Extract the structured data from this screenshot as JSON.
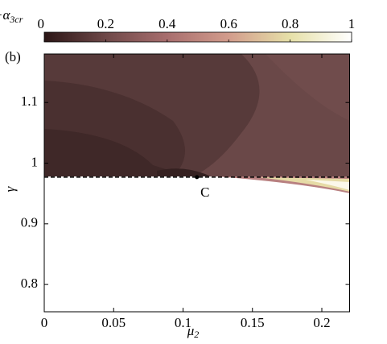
{
  "chart_data": {
    "type": "contour",
    "panel_label": "(b)",
    "colorbar_label": {
      "symbol": "−α",
      "subscript": "3cr"
    },
    "clim": [
      0,
      1
    ],
    "cticks": [
      0,
      0.2,
      0.4,
      0.6,
      0.8,
      1
    ],
    "colormap": [
      "#2b1515",
      "#6e4848",
      "#a86e6e",
      "#d29c8c",
      "#e6e0a8",
      "#ffffff"
    ],
    "xlabel": {
      "symbol": "μ",
      "subscript": "2"
    },
    "ylabel": "γ",
    "xlim": [
      0,
      0.22
    ],
    "ylim": [
      0.755,
      1.18
    ],
    "xticks": [
      0,
      0.05,
      0.1,
      0.15,
      0.2
    ],
    "yticks": [
      0.8,
      0.9,
      1,
      1.1
    ],
    "critical_line": {
      "x": [
        0,
        0.22
      ],
      "y": [
        0.977,
        0.977
      ],
      "color": "#000000"
    },
    "point": {
      "label": "C",
      "x": 0.11,
      "y": 0.977
    }
  }
}
